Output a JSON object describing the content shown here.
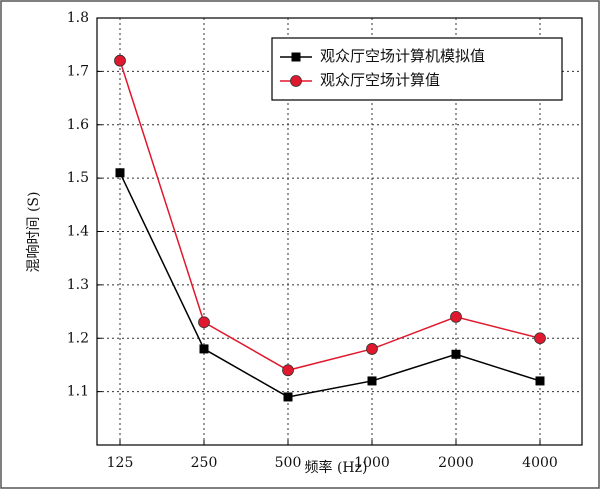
{
  "chart_data": {
    "type": "line",
    "x_label": "频率 (Hz)",
    "y_label": "混响时间 (S)",
    "categories": [
      "125",
      "250",
      "500",
      "1000",
      "2000",
      "4000"
    ],
    "series": [
      {
        "name": "观众厅空场计算机模拟值",
        "color": "#000000",
        "marker": "square",
        "values": [
          1.51,
          1.18,
          1.09,
          1.12,
          1.17,
          1.12
        ]
      },
      {
        "name": "观众厅空场计算值",
        "color": "#e0182d",
        "marker": "circle",
        "values": [
          1.72,
          1.23,
          1.14,
          1.18,
          1.24,
          1.2
        ]
      }
    ],
    "ylim": [
      1.0,
      1.8
    ],
    "yticks": [
      1.1,
      1.2,
      1.3,
      1.4,
      1.5,
      1.6,
      1.7,
      1.8
    ],
    "grid": true,
    "legend": "upper-right"
  }
}
